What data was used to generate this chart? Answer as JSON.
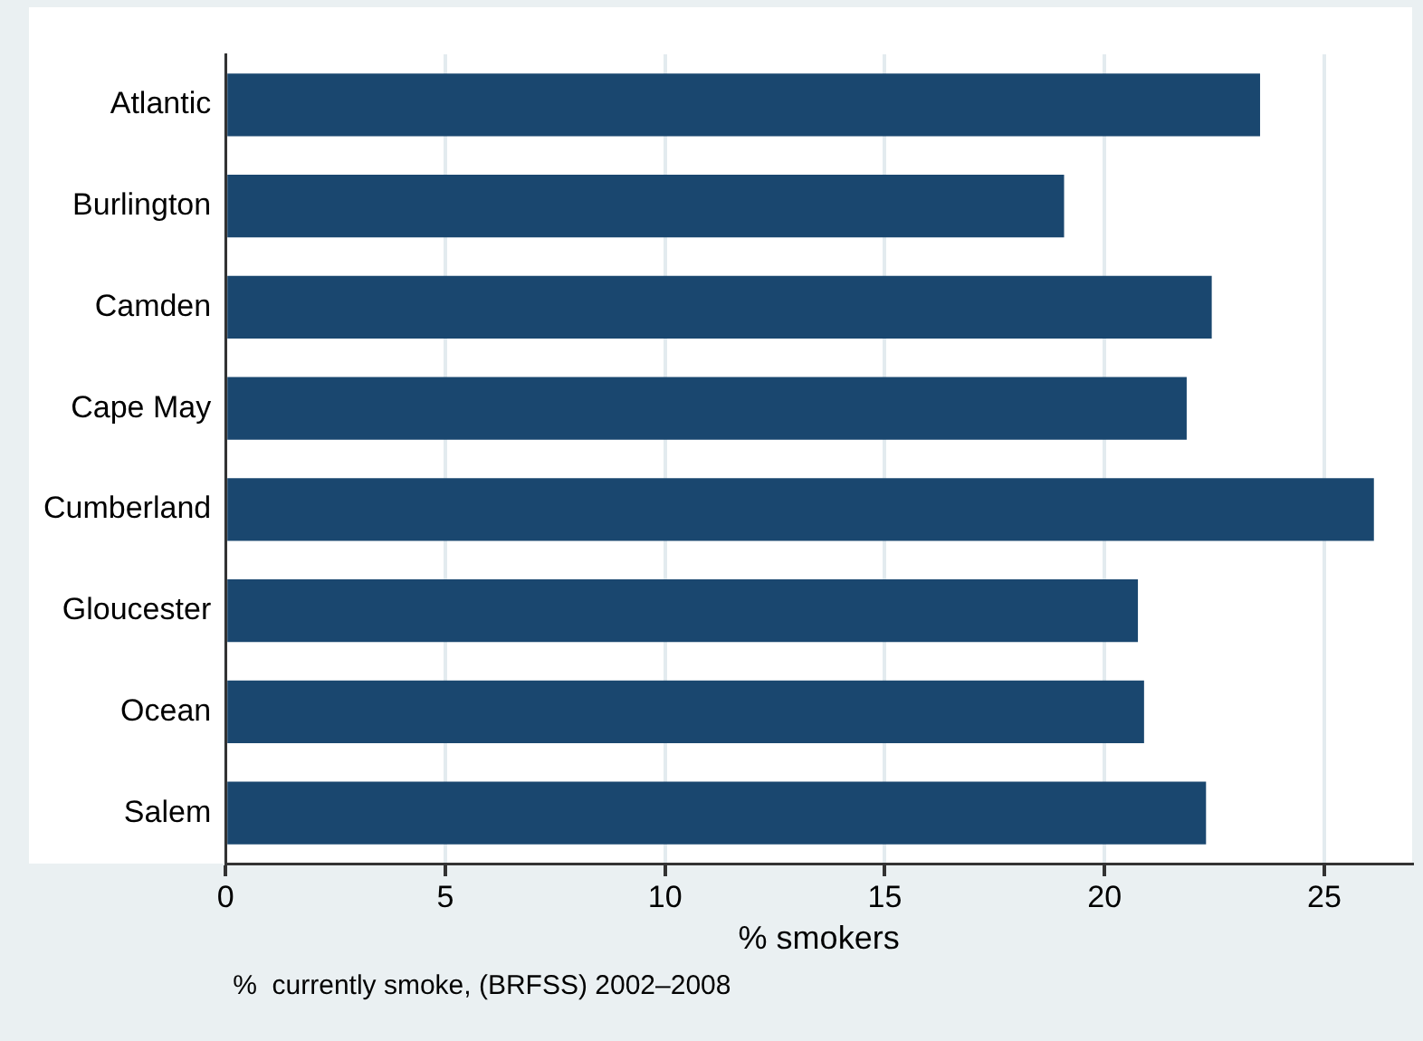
{
  "chart_data": {
    "type": "bar",
    "orientation": "horizontal",
    "categories": [
      "Atlantic",
      "Burlington",
      "Camden",
      "Cape May",
      "Cumberland",
      "Gloucester",
      "Ocean",
      "Salem"
    ],
    "values": [
      23.54,
      19.08,
      22.44,
      21.87,
      26.13,
      20.76,
      20.9,
      22.31
    ],
    "color": "#1a476f",
    "xlim": [
      0,
      27
    ],
    "xticks": [
      0,
      5,
      10,
      15,
      20,
      25
    ],
    "xlabel": "% smokers",
    "annotations": [
      "%  currently smoke, (BRFSS) 2002–2008"
    ],
    "grid": "x",
    "legend": false
  }
}
